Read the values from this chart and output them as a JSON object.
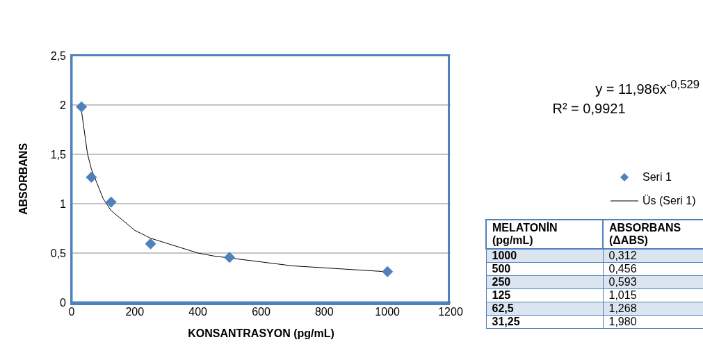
{
  "chart_data": [
    {
      "type": "scatter",
      "xlabel": "KONSANTRASYON (pg/mL)",
      "ylabel": "ABSORBANS",
      "xlim": [
        0,
        1200
      ],
      "xticks": [
        0,
        200,
        400,
        600,
        800,
        1000,
        1200
      ],
      "ylim": [
        0,
        2.5
      ],
      "yticks": [
        0,
        {
          "value": 0.5,
          "label": "0,5"
        },
        1,
        {
          "value": 1.5,
          "label": "1,5"
        },
        2,
        {
          "value": 2.5,
          "label": "2,5"
        }
      ],
      "grid": "y",
      "legend": "right",
      "marker": "diamond",
      "annotations": [
        "y = 11,986x$^{-0,529}$",
        "R² = 0,9921"
      ],
      "series": [
        {
          "name": "Seri 1",
          "color": "#4f81bd",
          "x": [
            1000,
            500,
            250,
            125,
            62.5,
            31.25
          ],
          "values": [
            0.312,
            0.456,
            0.593,
            1.015,
            1.268,
            1.98
          ]
        },
        {
          "name": "Üs (Seri 1)",
          "type": "line",
          "color": "#000000",
          "marker": "none",
          "line_style": "solid",
          "x": [
            31.25,
            50,
            62.5,
            100,
            125,
            200,
            250,
            400,
            450,
            700,
            900,
            1000
          ],
          "values": [
            1.94,
            1.51,
            1.35,
            1.05,
            0.93,
            0.73,
            0.65,
            0.5,
            0.47,
            0.37,
            0.33,
            0.31
          ]
        }
      ]
    },
    {
      "type": "other",
      "annotations": [
        "MELATONİN (pg/mL)",
        "ABSORBANS (ΔABS)"
      ],
      "categories": [
        "1000",
        "500",
        "250",
        "125",
        "62,5",
        "31,25"
      ],
      "value_labels": [
        "0,312",
        "0,456",
        "0,593",
        "1,015",
        "1,268",
        "1,980"
      ]
    }
  ]
}
